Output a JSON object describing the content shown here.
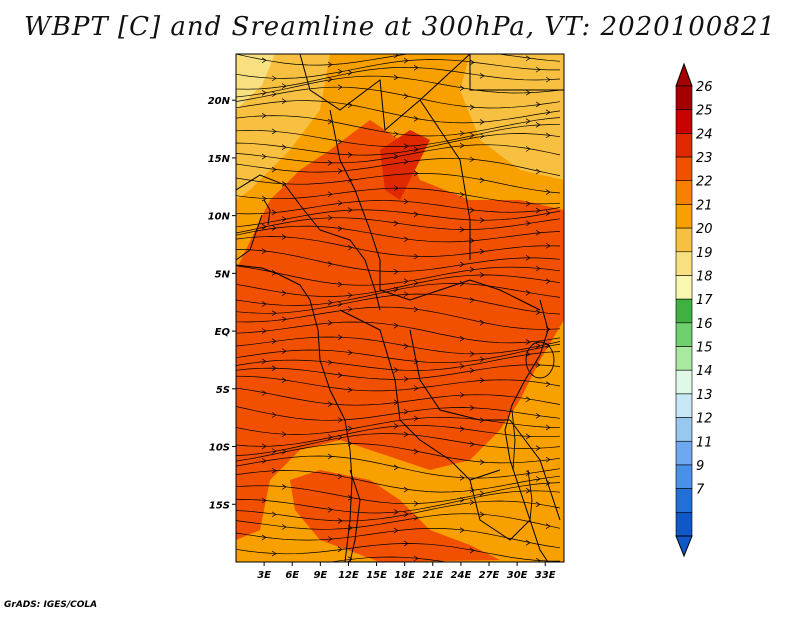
{
  "title": "WBPT [C] and Sreamline at 300hPa, VT: 2020100821",
  "credit": "GrADS: IGES/COLA",
  "map": {
    "lon_range": [
      0,
      35
    ],
    "lat_range": [
      -20,
      24
    ],
    "lat_ticks": [
      {
        "value": 20,
        "label": "20N"
      },
      {
        "value": 15,
        "label": "15N"
      },
      {
        "value": 10,
        "label": "10N"
      },
      {
        "value": 5,
        "label": "5N"
      },
      {
        "value": 0,
        "label": "EQ"
      },
      {
        "value": -5,
        "label": "5S"
      },
      {
        "value": -10,
        "label": "10S"
      },
      {
        "value": -15,
        "label": "15S"
      }
    ],
    "lon_ticks": [
      {
        "value": 3,
        "label": "3E"
      },
      {
        "value": 6,
        "label": "6E"
      },
      {
        "value": 9,
        "label": "9E"
      },
      {
        "value": 12,
        "label": "12E"
      },
      {
        "value": 15,
        "label": "15E"
      },
      {
        "value": 18,
        "label": "18E"
      },
      {
        "value": 21,
        "label": "21E"
      },
      {
        "value": 24,
        "label": "24E"
      },
      {
        "value": 27,
        "label": "27E"
      },
      {
        "value": 30,
        "label": "30E"
      },
      {
        "value": 33,
        "label": "33E"
      }
    ]
  },
  "colorbar": {
    "labels": [
      "26",
      "25",
      "24",
      "23",
      "22",
      "21",
      "20",
      "19",
      "18",
      "17",
      "16",
      "15",
      "14",
      "13",
      "12",
      "11",
      "9",
      "7"
    ],
    "colors": [
      "#a50000",
      "#c80000",
      "#e02800",
      "#f05000",
      "#f88000",
      "#f8a000",
      "#f8c040",
      "#f8e080",
      "#f8f8b0",
      "#40b040",
      "#70d070",
      "#a8e8a0",
      "#e0f8e8",
      "#c8e8f8",
      "#98c8f0",
      "#70a8f0",
      "#4890e8",
      "#2070d8",
      "#1058c8"
    ],
    "top_arrow_color": "#a50000",
    "bottom_arrow_color": "#1058c8"
  }
}
